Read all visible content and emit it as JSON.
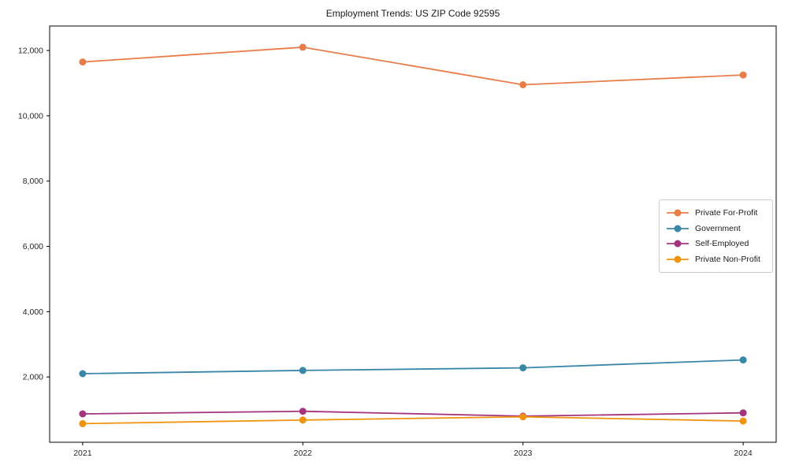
{
  "chart_data": {
    "type": "line",
    "title": "Employment Trends: US ZIP Code 92595",
    "x": [
      2021,
      2022,
      2023,
      2024
    ],
    "xtick_labels": [
      "2021",
      "2022",
      "2023",
      "2024"
    ],
    "series": [
      {
        "name": "Private For-Profit",
        "color": "#E87D4A",
        "values": [
          11650,
          12100,
          10950,
          11250
        ]
      },
      {
        "name": "Government",
        "color": "#3A87A8",
        "values": [
          2100,
          2200,
          2280,
          2520
        ]
      },
      {
        "name": "Self-Employed",
        "color": "#A53480",
        "values": [
          870,
          950,
          800,
          900
        ]
      },
      {
        "name": "Private Non-Profit",
        "color": "#F09410",
        "values": [
          570,
          680,
          780,
          650
        ]
      }
    ],
    "xlim": [
      2020.85,
      2024.15
    ],
    "ylim": [
      0,
      12750
    ],
    "yticks": [
      2000,
      4000,
      6000,
      8000,
      10000,
      12000
    ],
    "ytick_labels": [
      "2,000",
      "4,000",
      "6,000",
      "8,000",
      "10,000",
      "12,000"
    ],
    "grid": false,
    "legend_position": "center right",
    "marker": "circle",
    "axis_color": "#000000",
    "tick_label_color": "#262626"
  }
}
